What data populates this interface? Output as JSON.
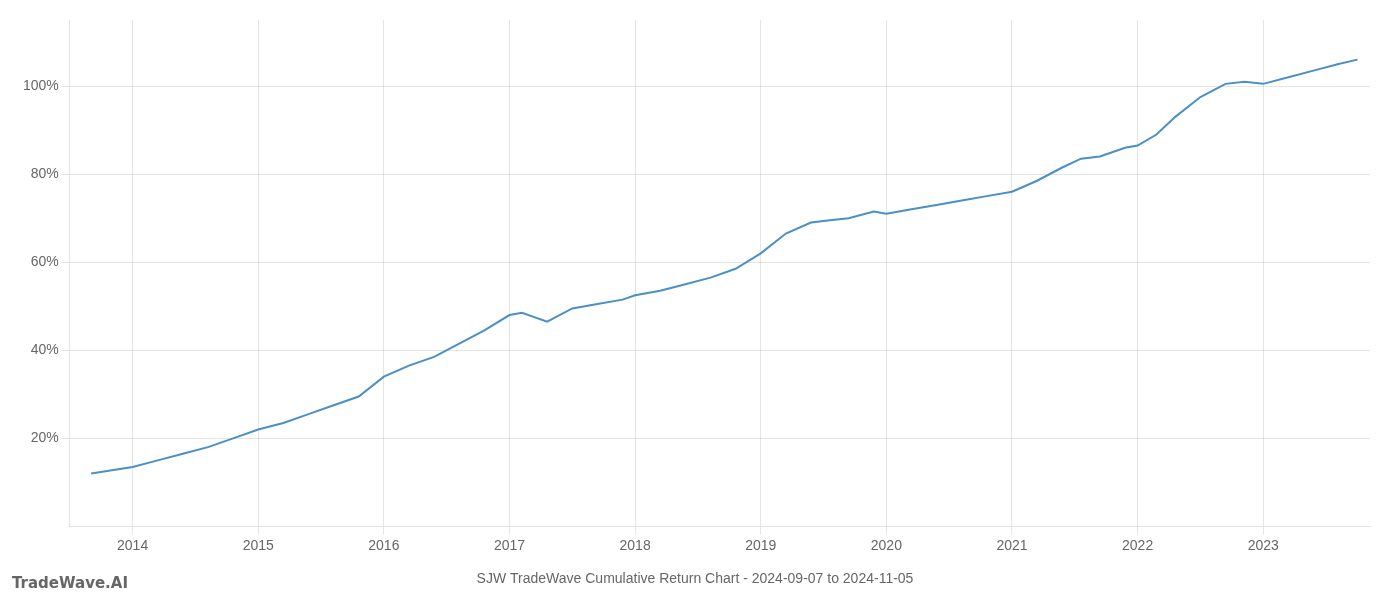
{
  "chart_data": {
    "type": "line",
    "title": "SJW TradeWave Cumulative Return Chart - 2024-09-07 to 2024-11-05",
    "annotations": [
      "TradeWave.AI"
    ],
    "x": [
      2013.67,
      2014.0,
      2014.2,
      2014.4,
      2014.6,
      2014.8,
      2015.0,
      2015.2,
      2015.4,
      2015.6,
      2015.8,
      2016.0,
      2016.2,
      2016.4,
      2016.6,
      2016.8,
      2017.0,
      2017.1,
      2017.3,
      2017.5,
      2017.7,
      2017.9,
      2018.0,
      2018.2,
      2018.4,
      2018.6,
      2018.8,
      2019.0,
      2019.2,
      2019.4,
      2019.55,
      2019.7,
      2019.9,
      2020.0,
      2020.2,
      2020.4,
      2020.6,
      2020.8,
      2021.0,
      2021.2,
      2021.4,
      2021.55,
      2021.7,
      2021.9,
      2022.0,
      2022.15,
      2022.3,
      2022.5,
      2022.7,
      2022.85,
      2023.0,
      2023.2,
      2023.4,
      2023.6,
      2023.75
    ],
    "values": [
      12.0,
      13.5,
      15.0,
      16.5,
      18.0,
      20.0,
      22.0,
      23.5,
      25.5,
      27.5,
      29.5,
      34.0,
      36.5,
      38.5,
      41.5,
      44.5,
      48.0,
      48.5,
      46.5,
      49.5,
      50.5,
      51.5,
      52.5,
      53.5,
      55.0,
      56.5,
      58.5,
      62.0,
      66.5,
      69.0,
      69.5,
      70.0,
      71.5,
      71.0,
      72.0,
      73.0,
      74.0,
      75.0,
      76.0,
      78.5,
      81.5,
      83.5,
      84.0,
      86.0,
      86.5,
      89.0,
      93.0,
      97.5,
      100.5,
      101.0,
      100.5,
      102.0,
      103.5,
      105.0,
      106.0
    ],
    "color": "#4a90c4",
    "xlim": [
      2013.5,
      2023.85
    ],
    "xticks": [
      2014,
      2015,
      2016,
      2017,
      2018,
      2019,
      2020,
      2021,
      2022,
      2023
    ],
    "ylim": [
      0,
      115
    ],
    "yticks": [
      {
        "value": 20,
        "label": "20%"
      },
      {
        "value": 40,
        "label": "40%"
      },
      {
        "value": 60,
        "label": "60%"
      },
      {
        "value": 80,
        "label": "80%"
      },
      {
        "value": 100,
        "label": "100%"
      }
    ],
    "grid": true
  }
}
